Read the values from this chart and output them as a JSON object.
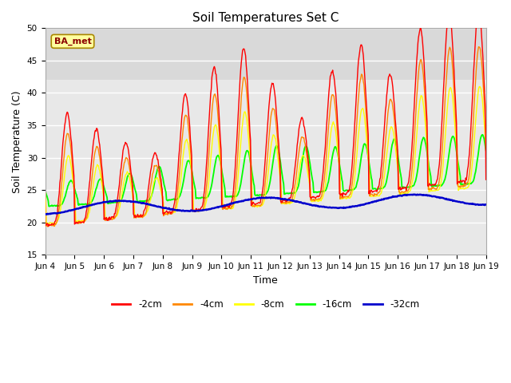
{
  "title": "Soil Temperatures Set C",
  "xlabel": "Time",
  "ylabel": "Soil Temperature (C)",
  "ylim": [
    15,
    50
  ],
  "yticks": [
    15,
    20,
    25,
    30,
    35,
    40,
    45,
    50
  ],
  "xlim_start": 0,
  "xlim_end": 360,
  "xtick_labels": [
    "Jun 4",
    "Jun 5",
    "Jun 6",
    "Jun 7",
    "Jun 8",
    "Jun 9",
    "Jun 10",
    "Jun 11",
    "Jun 12",
    "Jun 13",
    "Jun 14",
    "Jun 15",
    "Jun 16",
    "Jun 17",
    "Jun 18",
    "Jun 19"
  ],
  "xtick_positions": [
    0,
    24,
    48,
    72,
    96,
    120,
    144,
    168,
    192,
    216,
    240,
    264,
    288,
    312,
    336,
    360
  ],
  "colors": {
    "2cm": "#ff0000",
    "4cm": "#ff8800",
    "8cm": "#ffff00",
    "16cm": "#00ff00",
    "32cm": "#0000cc"
  },
  "legend_labels": [
    "-2cm",
    "-4cm",
    "-8cm",
    "-16cm",
    "-32cm"
  ],
  "annotation_text": "BA_met",
  "plot_bg": "#e8e8e8",
  "fig_bg": "#ffffff",
  "shaded_ymin": 42,
  "shaded_ymax": 50,
  "shaded_color": "#d0d0d0",
  "grid_color": "#ffffff",
  "num_points": 720
}
